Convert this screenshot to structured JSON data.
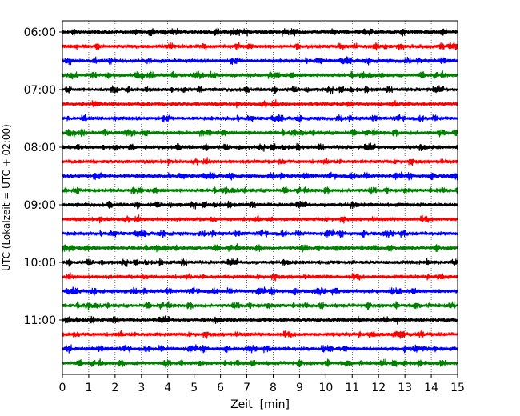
{
  "chart_data": {
    "type": "line",
    "title": "",
    "xlabel": "Zeit  [min]",
    "ylabel": "UTC (Lokalzeit = UTC + 02:00)",
    "xlim": [
      0,
      15
    ],
    "x_ticks": [
      0,
      1,
      2,
      3,
      4,
      5,
      6,
      7,
      8,
      9,
      10,
      11,
      12,
      13,
      14,
      15
    ],
    "x_tick_labels": [
      "0",
      "1",
      "2",
      "3",
      "4",
      "5",
      "6",
      "7",
      "8",
      "9",
      "10",
      "11",
      "12",
      "13",
      "14",
      "15"
    ],
    "y_tick_labels": [
      "06:00",
      "07:00",
      "08:00",
      "09:00",
      "10:00",
      "11:00"
    ],
    "y_tick_trace_index": [
      0,
      4,
      8,
      12,
      16,
      20
    ],
    "grid": "vertical-dotted",
    "trace_colors": [
      "#000000",
      "#ff0000",
      "#0000ff",
      "#008000"
    ],
    "traces": [
      "06:00",
      "06:15",
      "06:30",
      "06:45",
      "07:00",
      "07:15",
      "07:30",
      "07:45",
      "08:00",
      "08:15",
      "08:30",
      "08:45",
      "09:00",
      "09:15",
      "09:30",
      "09:45",
      "10:00",
      "10:15",
      "10:30",
      "10:45",
      "11:00",
      "11:15",
      "11:30",
      "11:45"
    ]
  }
}
